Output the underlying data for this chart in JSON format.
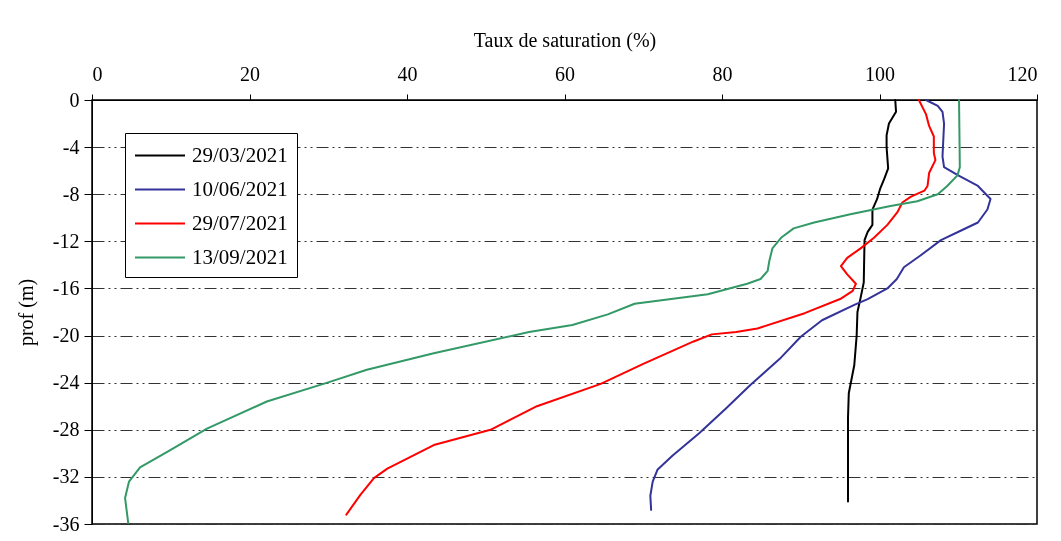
{
  "chart_data": {
    "type": "line",
    "xlabel": "Taux de saturation (%)",
    "ylabel": "prof (m)",
    "xlim": [
      0,
      120
    ],
    "xticks": [
      0,
      20,
      40,
      60,
      80,
      100,
      120
    ],
    "ylim": [
      -36,
      0
    ],
    "yticks": [
      0,
      -4,
      -8,
      -12,
      -16,
      -20,
      -24,
      -28,
      -32,
      -36
    ],
    "grid": "y",
    "legend": "top left",
    "series": [
      {
        "name": "29/03/2021",
        "color": "#000000",
        "x": [
          102.0,
          102.1,
          101.2,
          100.9,
          100.9,
          101.1,
          100.6,
          100.1,
          99.7,
          99.1,
          99.1,
          98.5,
          98.1,
          98.0,
          97.6,
          97.2,
          97.1,
          96.8,
          96.1,
          96.0,
          96.0
        ],
        "values": [
          0,
          -1.0,
          -2.0,
          -3.0,
          -4.0,
          -5.8,
          -6.7,
          -7.5,
          -8.4,
          -9.3,
          -10.6,
          -11.2,
          -11.9,
          -15.5,
          -16.8,
          -18.0,
          -20.0,
          -22.5,
          -24.9,
          -27.0,
          -34.1
        ]
      },
      {
        "name": "10/06/2021",
        "color": "#333399",
        "x": [
          105.9,
          107.4,
          108.0,
          108.2,
          108.0,
          108.2,
          110.0,
          112.5,
          114.1,
          113.7,
          112.5,
          110.3,
          107.8,
          105.2,
          103.1,
          102.2,
          101.0,
          98.5,
          96.8,
          92.7,
          90.0,
          87.3,
          83.6,
          80.5,
          77.1,
          73.7,
          71.8,
          71.2,
          70.9,
          71.0
        ],
        "values": [
          0,
          -0.5,
          -1.0,
          -2.0,
          -4.8,
          -5.7,
          -6.4,
          -7.3,
          -8.4,
          -9.3,
          -10.4,
          -11.1,
          -11.9,
          -13.2,
          -14.2,
          -15.2,
          -16.0,
          -16.9,
          -17.4,
          -18.7,
          -20.1,
          -22.0,
          -24.2,
          -26.2,
          -28.3,
          -30.2,
          -31.4,
          -32.4,
          -33.6,
          -34.8
        ]
      },
      {
        "name": "29/07/2021",
        "color": "#ff0000",
        "x": [
          105.0,
          105.9,
          106.3,
          106.9,
          106.9,
          107.1,
          106.3,
          106.1,
          105.7,
          104.0,
          102.9,
          102.3,
          101.0,
          99.3,
          97.6,
          95.9,
          95.1,
          95.9,
          97.0,
          96.6,
          95.0,
          90.5,
          84.5,
          81.8,
          78.7,
          76.4,
          70.0,
          64.6,
          56.5,
          50.6,
          43.4,
          37.5,
          35.8,
          34.1,
          32.3
        ],
        "values": [
          0,
          -1.2,
          -2.2,
          -3.1,
          -4.5,
          -5.1,
          -6.2,
          -7.3,
          -7.7,
          -8.2,
          -8.7,
          -9.5,
          -10.6,
          -11.7,
          -12.6,
          -13.4,
          -14.1,
          -14.8,
          -15.6,
          -16.2,
          -16.9,
          -18.1,
          -19.4,
          -19.7,
          -19.9,
          -20.5,
          -22.4,
          -24.1,
          -26.0,
          -28.0,
          -29.3,
          -31.3,
          -32.1,
          -33.5,
          -35.2
        ]
      },
      {
        "name": "13/09/2021",
        "color": "#339966",
        "x": [
          110.1,
          110.2,
          109.9,
          108.6,
          107.4,
          104.8,
          101.4,
          96.3,
          91.7,
          89.1,
          87.5,
          86.4,
          86.0,
          85.8,
          84.9,
          83.2,
          78.2,
          68.9,
          65.5,
          61.0,
          55.5,
          43.4,
          34.9,
          29.9,
          22.2,
          14.6,
          9.5,
          6.1,
          4.7,
          4.2,
          4.6
        ],
        "values": [
          0,
          -5.7,
          -6.4,
          -7.3,
          -8.0,
          -8.6,
          -9.0,
          -9.7,
          -10.4,
          -10.9,
          -11.7,
          -12.6,
          -13.7,
          -14.5,
          -15.2,
          -15.6,
          -16.5,
          -17.3,
          -18.2,
          -19.1,
          -19.7,
          -21.5,
          -22.9,
          -24.0,
          -25.6,
          -27.9,
          -29.9,
          -31.2,
          -32.4,
          -33.8,
          -35.9
        ]
      }
    ]
  }
}
